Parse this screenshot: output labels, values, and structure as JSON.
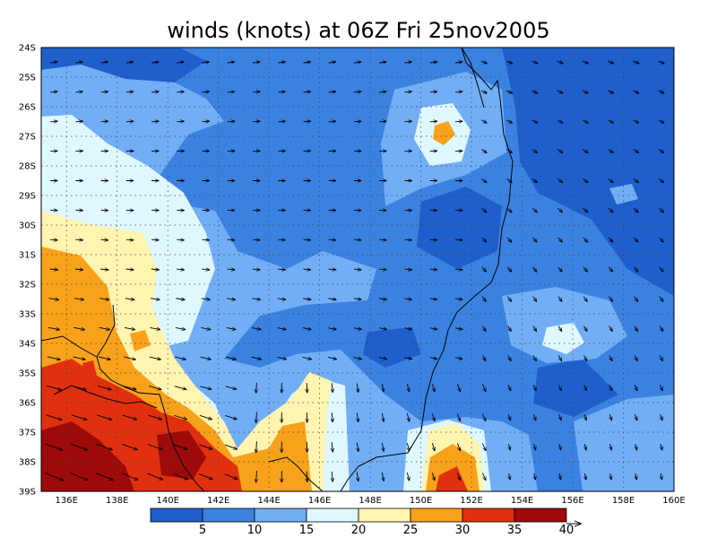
{
  "title": "winds (knots) at 06Z Fri 25nov2005",
  "lat_labels": [
    "24S",
    "25S",
    "26S",
    "27S",
    "28S",
    "29S",
    "30S",
    "31S",
    "32S",
    "33S",
    "34S",
    "35S",
    "36S",
    "37S",
    "38S",
    "39S"
  ],
  "lon_labels": [
    "136E",
    "138E",
    "140E",
    "142E",
    "144E",
    "146E",
    "148E",
    "150E",
    "152E",
    "154E",
    "156E",
    "158E",
    "160E"
  ],
  "colorbar": {
    "tick_labels": [
      "5",
      "10",
      "15",
      "20",
      "25",
      "30",
      "35",
      "40"
    ],
    "colors": [
      "#1f5fcc",
      "#3b82e0",
      "#72aef5",
      "#dff7ff",
      "#fff4b0",
      "#f7a21a",
      "#e03010",
      "#9e0a0a"
    ]
  },
  "map": {
    "lon_range": [
      135,
      160
    ],
    "lat_range": [
      -39,
      -24
    ],
    "grid_style": "dotted",
    "background_color": "#3b82e0"
  }
}
